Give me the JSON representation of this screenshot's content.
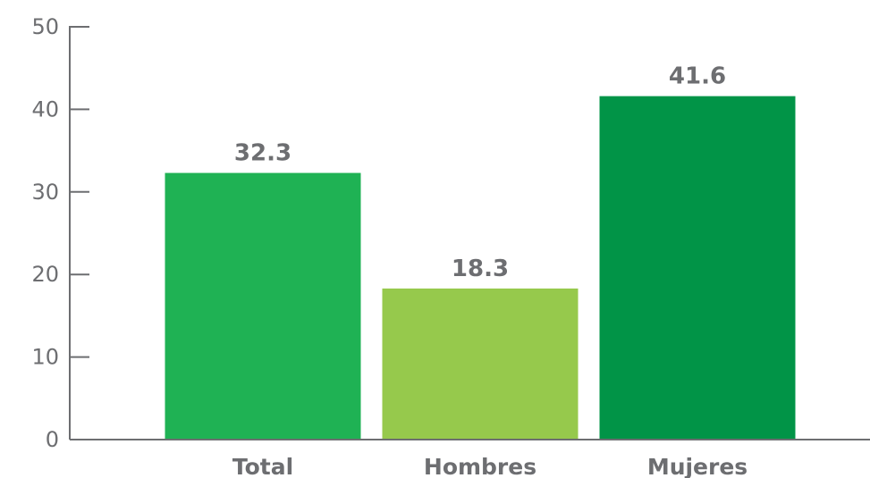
{
  "chart_data": {
    "type": "bar",
    "categories": [
      "Total",
      "Hombres",
      "Mujeres"
    ],
    "values": [
      32.3,
      18.3,
      41.6
    ],
    "value_labels": [
      "32.3",
      "18.3",
      "41.6"
    ],
    "bar_colors": [
      "#1fb254",
      "#96c94c",
      "#019447"
    ],
    "title": "",
    "xlabel": "",
    "ylabel": "",
    "ylim": [
      0,
      50
    ],
    "yticks": [
      0,
      10,
      20,
      30,
      40,
      50
    ],
    "ytick_labels": [
      "0",
      "10",
      "20",
      "30",
      "40",
      "50"
    ],
    "grid": false,
    "legend": "none",
    "axis_color": "#6d6e71",
    "text_color": "#6d6e71"
  }
}
